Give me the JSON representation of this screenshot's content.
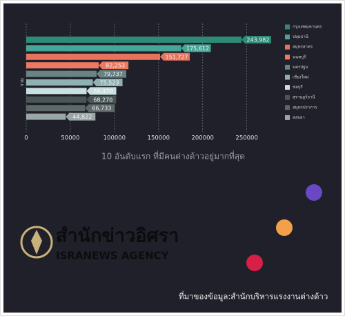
{
  "chart_data": {
    "type": "bar",
    "orientation": "horizontal",
    "title": "10 อันดับแรก ที่มีคนต่างด้าวอยู่มากที่สุด",
    "y_label": "รวม",
    "categories": [
      "กรุงเทพมหานคร",
      "ปทุมธานี",
      "สมุทรสาคร",
      "นนทบุรี",
      "นครปฐม",
      "เชียงใหม่",
      "ชลบุรี",
      "สุราษฎร์ธานี",
      "สมุทรปราการ",
      "สงขลา"
    ],
    "values": [
      243982,
      175612,
      151727,
      82253,
      79737,
      75523,
      68470,
      68270,
      66733,
      44822
    ],
    "value_labels": [
      "243,982",
      "175,612",
      "151,727",
      "82,253",
      "79,737",
      "75,523",
      "68,470",
      "68,270",
      "66,733",
      "44,822"
    ],
    "colors": [
      "#2f8a78",
      "#46a596",
      "#e8735c",
      "#ec7a62",
      "#6a8383",
      "#8fb1b1",
      "#c9e0e0",
      "#4a5656",
      "#5e6868",
      "#9ba6a6"
    ],
    "xlim": [
      0,
      280000
    ],
    "xticks": [
      0,
      50000,
      100000,
      150000,
      200000,
      250000
    ],
    "grid": true,
    "legend": "right",
    "source": "ที่มาของข้อมูล:สำนักบริหารแรงงานต่างด้าว"
  },
  "brand": {
    "name": "สำนักข่าวอิศรา",
    "tagline": "ISRANEWS AGENCY"
  }
}
